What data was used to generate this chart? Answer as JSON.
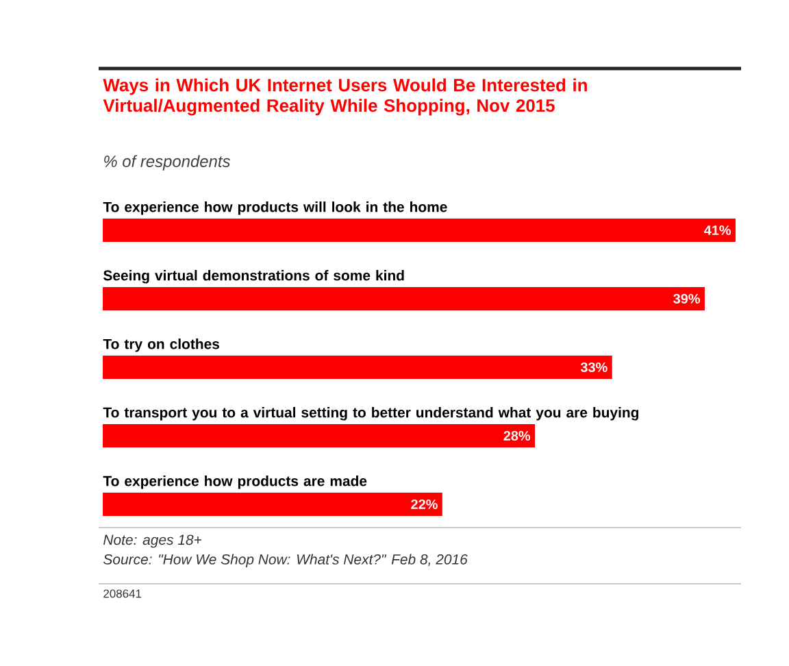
{
  "chart_data": {
    "type": "bar",
    "orientation": "horizontal",
    "title": "Ways in Which UK Internet Users Would Be Interested in Virtual/Augmented Reality While Shopping, Nov 2015",
    "subtitle": "% of respondents",
    "categories": [
      "To experience how products will look in the home",
      "Seeing virtual demonstrations of some kind",
      "To try on clothes",
      "To transport you to a virtual setting to better understand what you are buying",
      "To experience how products are made"
    ],
    "values": [
      41,
      39,
      33,
      28,
      22
    ],
    "value_labels": [
      "41%",
      "39%",
      "33%",
      "28%",
      "22%"
    ],
    "color": "#ff0000",
    "annotations": [
      "Note: ages 18+",
      "Source: \"How We Shop Now: What's Next?\" Feb 8, 2016",
      "208641"
    ]
  }
}
